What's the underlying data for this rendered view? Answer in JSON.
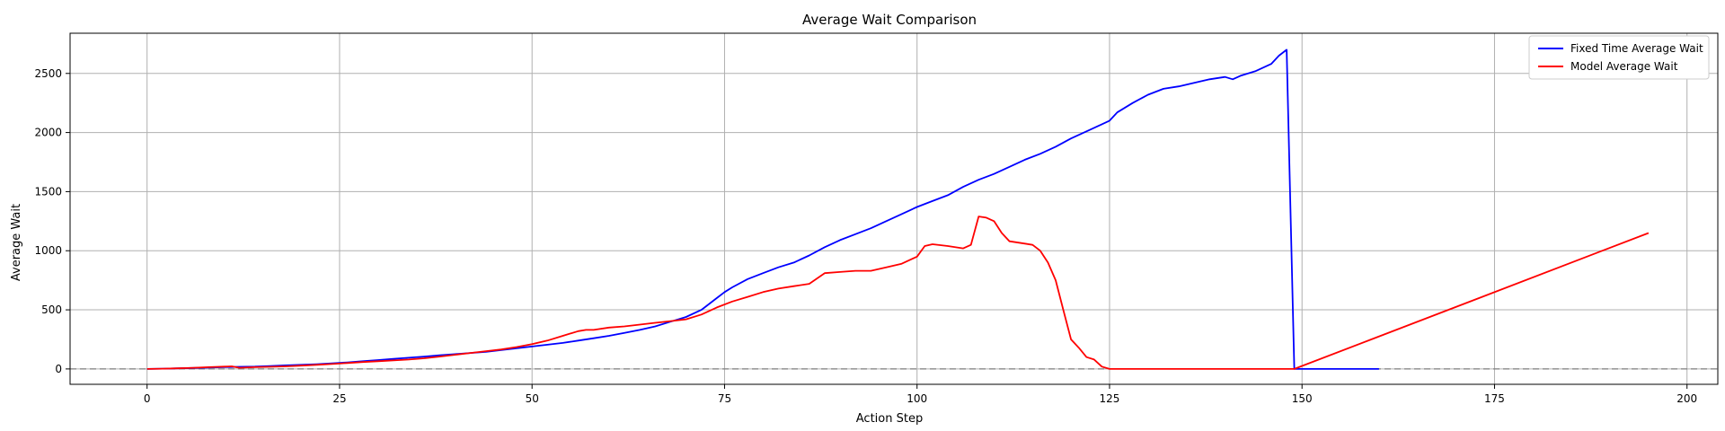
{
  "chart_data": {
    "type": "line",
    "title": "Average Wait Comparison",
    "xlabel": "Action Step",
    "ylabel": "Average Wait",
    "xlim": [
      -10,
      204
    ],
    "ylim": [
      -130,
      2840
    ],
    "xticks": [
      0,
      25,
      50,
      75,
      100,
      125,
      150,
      175,
      200
    ],
    "yticks": [
      0,
      500,
      1000,
      1500,
      2000,
      2500
    ],
    "grid": true,
    "legend_position": "top-right",
    "reference_line": {
      "y": 0,
      "style": "dashed",
      "color": "#808080"
    },
    "series": [
      {
        "name": "Fixed Time Average Wait",
        "color": "#0000ff",
        "x": [
          0,
          2,
          4,
          6,
          8,
          10,
          12,
          14,
          16,
          18,
          20,
          22,
          24,
          26,
          28,
          30,
          32,
          34,
          36,
          38,
          40,
          42,
          44,
          46,
          48,
          50,
          52,
          54,
          56,
          58,
          60,
          62,
          64,
          66,
          68,
          70,
          72,
          74,
          75,
          76,
          78,
          80,
          82,
          84,
          86,
          88,
          90,
          92,
          94,
          96,
          98,
          100,
          102,
          104,
          106,
          108,
          110,
          112,
          114,
          116,
          118,
          120,
          122,
          124,
          125,
          126,
          128,
          130,
          132,
          134,
          136,
          138,
          140,
          141,
          142,
          144,
          146,
          147,
          148,
          149,
          150,
          155,
          160
        ],
        "values": [
          0,
          2,
          5,
          8,
          12,
          15,
          18,
          20,
          25,
          30,
          35,
          40,
          48,
          55,
          65,
          75,
          85,
          95,
          105,
          115,
          125,
          135,
          145,
          160,
          175,
          190,
          205,
          220,
          240,
          260,
          280,
          305,
          330,
          360,
          400,
          440,
          500,
          600,
          650,
          690,
          760,
          810,
          860,
          900,
          960,
          1030,
          1090,
          1140,
          1190,
          1250,
          1310,
          1370,
          1420,
          1470,
          1540,
          1600,
          1650,
          1710,
          1770,
          1820,
          1880,
          1950,
          2010,
          2070,
          2100,
          2170,
          2250,
          2320,
          2370,
          2390,
          2420,
          2450,
          2470,
          2450,
          2480,
          2520,
          2580,
          2650,
          2700,
          0,
          0,
          0,
          0
        ]
      },
      {
        "name": "Model Average Wait",
        "color": "#ff0000",
        "x": [
          0,
          2,
          4,
          6,
          8,
          10,
          11,
          12,
          14,
          16,
          18,
          20,
          22,
          24,
          26,
          28,
          30,
          32,
          34,
          36,
          38,
          40,
          42,
          44,
          46,
          48,
          50,
          52,
          54,
          56,
          57,
          58,
          60,
          62,
          64,
          66,
          68,
          70,
          72,
          74,
          76,
          78,
          80,
          82,
          84,
          86,
          88,
          90,
          92,
          94,
          96,
          98,
          100,
          101,
          102,
          104,
          106,
          107,
          108,
          109,
          110,
          111,
          112,
          114,
          115,
          116,
          117,
          118,
          119,
          120,
          121,
          122,
          123,
          124,
          125,
          130,
          140,
          145,
          148,
          149,
          195
        ],
        "values": [
          0,
          2,
          5,
          10,
          15,
          20,
          22,
          10,
          15,
          18,
          22,
          28,
          35,
          42,
          50,
          58,
          65,
          72,
          80,
          90,
          105,
          120,
          135,
          150,
          165,
          185,
          210,
          240,
          280,
          320,
          330,
          330,
          350,
          360,
          375,
          390,
          405,
          420,
          460,
          520,
          570,
          610,
          650,
          680,
          700,
          720,
          810,
          820,
          830,
          830,
          860,
          890,
          950,
          1040,
          1055,
          1040,
          1020,
          1050,
          1290,
          1280,
          1250,
          1150,
          1080,
          1060,
          1050,
          1000,
          900,
          750,
          500,
          250,
          180,
          100,
          80,
          20,
          0,
          0,
          0,
          0,
          0,
          0,
          1150
        ]
      }
    ]
  }
}
